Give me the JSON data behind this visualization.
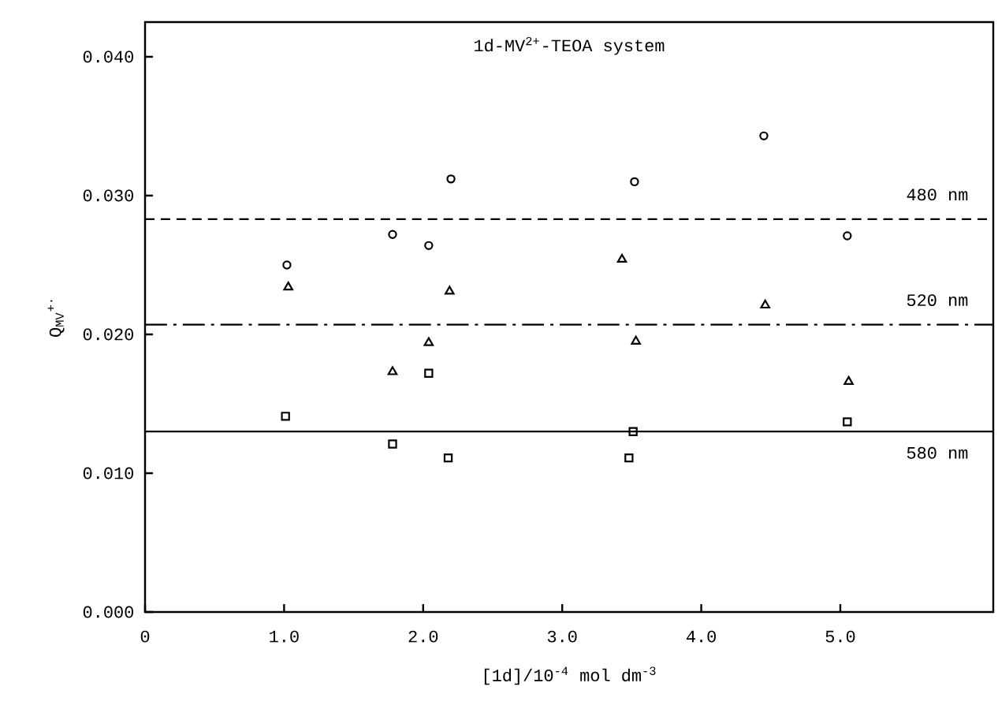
{
  "chart_data": {
    "type": "scatter",
    "title": "1d-MV$^{2+}$-TEOA system",
    "xlabel": "[1d]/10$^{-4}$ mol dm$^{-3}$",
    "ylabel": "Q$_{MV}$$^{+·}$",
    "xlim": [
      0,
      6.1
    ],
    "ylim": [
      0,
      0.0425
    ],
    "xticks": [
      0,
      {
        "value": 1,
        "label": "1.0"
      },
      {
        "value": 2,
        "label": "2.0"
      },
      {
        "value": 3,
        "label": "3.0"
      },
      {
        "value": 4,
        "label": "4.0"
      },
      {
        "value": 5,
        "label": "5.0"
      }
    ],
    "yticks": [
      {
        "value": 0,
        "label": "0.000"
      },
      {
        "value": 0.01,
        "label": "0.010"
      },
      {
        "value": 0.02,
        "label": "0.020"
      },
      {
        "value": 0.03,
        "label": "0.030"
      },
      {
        "value": 0.04,
        "label": "0.040"
      }
    ],
    "series": [
      {
        "color": "#000000",
        "marker": "circle",
        "x": [
          1.02,
          1.78,
          2.04,
          2.2,
          3.52,
          4.45,
          5.05
        ],
        "values": [
          0.025,
          0.0272,
          0.0264,
          0.0312,
          0.031,
          0.0343,
          0.0271
        ]
      },
      {
        "color": "#000000",
        "marker": "triangle",
        "x": [
          1.03,
          1.78,
          2.04,
          2.19,
          3.43,
          3.53,
          4.46,
          5.06
        ],
        "values": [
          0.0234,
          0.0173,
          0.0194,
          0.0231,
          0.0254,
          0.0195,
          0.0221,
          0.0166
        ]
      },
      {
        "color": "#000000",
        "marker": "square",
        "x": [
          1.01,
          1.78,
          2.04,
          2.18,
          3.48,
          3.51,
          5.05
        ],
        "values": [
          0.0141,
          0.0121,
          0.0172,
          0.0111,
          0.0111,
          0.013,
          0.0137
        ]
      }
    ],
    "ref_lines": [
      {
        "axis": "y",
        "value": 0.0283,
        "label": "480 nm",
        "color": "#000000",
        "line_style": "dashed"
      },
      {
        "axis": "y",
        "value": 0.0207,
        "label": "520 nm",
        "color": "#000000",
        "line_style": "dashdot"
      },
      {
        "axis": "y",
        "value": 0.013,
        "label": "580 nm",
        "color": "#000000",
        "line_style": "solid"
      }
    ]
  }
}
